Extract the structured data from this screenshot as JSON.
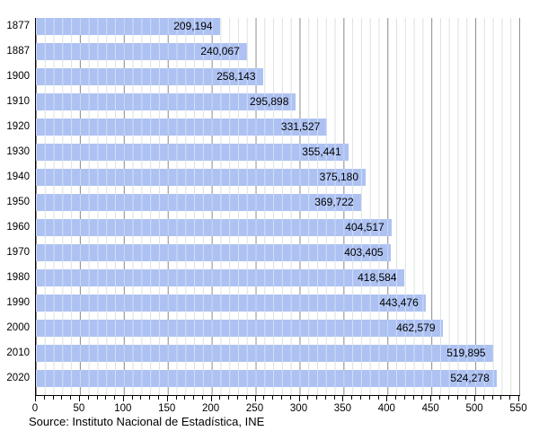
{
  "chart_data": {
    "type": "bar",
    "orientation": "horizontal",
    "title": "",
    "xlabel": "",
    "ylabel": "",
    "categories": [
      "1877",
      "1887",
      "1900",
      "1910",
      "1920",
      "1930",
      "1940",
      "1950",
      "1960",
      "1970",
      "1980",
      "1990",
      "2000",
      "2010",
      "2020"
    ],
    "values": [
      209194,
      240067,
      258143,
      295898,
      331527,
      355441,
      375180,
      369722,
      404517,
      403405,
      418584,
      443476,
      462579,
      519895,
      524278
    ],
    "value_labels": [
      "209,194",
      "240,067",
      "258,143",
      "295,898",
      "331,527",
      "355,441",
      "375,180",
      "369,722",
      "404,517",
      "403,405",
      "418,584",
      "443,476",
      "462,579",
      "519,895",
      "524,278"
    ],
    "xlim": [
      0,
      550
    ],
    "x_unit": "thousands",
    "x_tick_major_step": 50,
    "x_tick_minor_step": 10,
    "x_tick_labels": [
      "0",
      "50",
      "100",
      "150",
      "200",
      "250",
      "300",
      "350",
      "400",
      "450",
      "500",
      "550"
    ],
    "grid": "vertical, minor every 10, major every 50",
    "legend": "none",
    "bar_color": "#b3c8f2",
    "major_grid_color": "#8f8f8f",
    "minor_grid_color": "#dbe2db",
    "axis_color": "#000000",
    "source": "Source: Instituto Nacional de Estadística, INE"
  }
}
